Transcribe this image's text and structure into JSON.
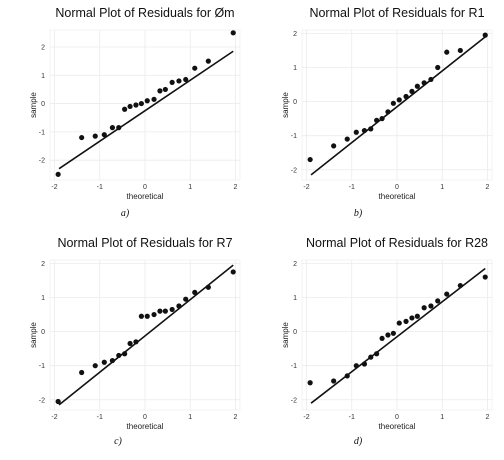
{
  "chart_data": [
    {
      "type": "scatter",
      "title": "Normal Plot of Residuals for Øm",
      "xlabel": "theoretical",
      "ylabel": "sample",
      "caption": "a)",
      "xlim": [
        -2.1,
        2.1
      ],
      "ylim": [
        -2.7,
        2.6
      ],
      "xticks": [
        -2,
        -1,
        0,
        1,
        2
      ],
      "yticks": [
        -2,
        -1,
        0,
        1,
        2
      ],
      "grid": true,
      "reference_line": {
        "x": [
          -1.9,
          1.95
        ],
        "y": [
          -2.3,
          1.85
        ]
      },
      "x": [
        -1.92,
        -1.4,
        -1.1,
        -0.9,
        -0.72,
        -0.58,
        -0.45,
        -0.33,
        -0.2,
        -0.08,
        0.05,
        0.2,
        0.33,
        0.45,
        0.6,
        0.75,
        0.9,
        1.1,
        1.4,
        1.95
      ],
      "y": [
        -2.5,
        -1.2,
        -1.15,
        -1.1,
        -0.85,
        -0.85,
        -0.2,
        -0.1,
        -0.05,
        0.0,
        0.1,
        0.15,
        0.45,
        0.5,
        0.75,
        0.8,
        0.85,
        1.25,
        1.5,
        2.5
      ]
    },
    {
      "type": "scatter",
      "title": "Normal Plot of Residuals for R1",
      "xlabel": "theoretical",
      "ylabel": "sample",
      "caption": "b)",
      "xlim": [
        -2.1,
        2.1
      ],
      "ylim": [
        -2.3,
        2.1
      ],
      "xticks": [
        -2,
        -1,
        0,
        1,
        2
      ],
      "yticks": [
        -2,
        -1,
        0,
        1,
        2
      ],
      "grid": true,
      "reference_line": {
        "x": [
          -1.9,
          1.95
        ],
        "y": [
          -2.15,
          1.9
        ]
      },
      "x": [
        -1.92,
        -1.4,
        -1.1,
        -0.9,
        -0.72,
        -0.58,
        -0.45,
        -0.33,
        -0.2,
        -0.08,
        0.05,
        0.2,
        0.33,
        0.45,
        0.6,
        0.75,
        0.9,
        1.1,
        1.4,
        1.95
      ],
      "y": [
        -1.7,
        -1.3,
        -1.1,
        -0.9,
        -0.85,
        -0.8,
        -0.55,
        -0.5,
        -0.3,
        -0.05,
        0.05,
        0.15,
        0.3,
        0.45,
        0.55,
        0.65,
        1.0,
        1.45,
        1.5,
        1.95
      ]
    },
    {
      "type": "scatter",
      "title": "Normal Plot of Residuals for R7",
      "xlabel": "theoretical",
      "ylabel": "sample",
      "caption": "c)",
      "xlim": [
        -2.1,
        2.1
      ],
      "ylim": [
        -2.3,
        2.1
      ],
      "xticks": [
        -2,
        -1,
        0,
        1,
        2
      ],
      "yticks": [
        -2,
        -1,
        0,
        1,
        2
      ],
      "grid": true,
      "reference_line": {
        "x": [
          -1.9,
          1.95
        ],
        "y": [
          -2.15,
          1.95
        ]
      },
      "x": [
        -1.92,
        -1.4,
        -1.1,
        -0.9,
        -0.72,
        -0.58,
        -0.45,
        -0.33,
        -0.2,
        -0.08,
        0.05,
        0.2,
        0.33,
        0.45,
        0.6,
        0.75,
        0.9,
        1.1,
        1.4,
        1.95
      ],
      "y": [
        -2.05,
        -1.2,
        -1.0,
        -0.9,
        -0.85,
        -0.7,
        -0.65,
        -0.35,
        -0.3,
        0.45,
        0.45,
        0.5,
        0.6,
        0.6,
        0.65,
        0.75,
        0.95,
        1.15,
        1.3,
        1.75
      ]
    },
    {
      "type": "scatter",
      "title": "Normal Plot of Residuals for R28",
      "xlabel": "theoretical",
      "ylabel": "sample",
      "caption": "d)",
      "xlim": [
        -2.1,
        2.1
      ],
      "ylim": [
        -2.3,
        2.1
      ],
      "xticks": [
        -2,
        -1,
        0,
        1,
        2
      ],
      "yticks": [
        -2,
        -1,
        0,
        1,
        2
      ],
      "grid": true,
      "reference_line": {
        "x": [
          -1.9,
          1.95
        ],
        "y": [
          -2.1,
          1.85
        ]
      },
      "x": [
        -1.92,
        -1.4,
        -1.1,
        -0.9,
        -0.72,
        -0.58,
        -0.45,
        -0.33,
        -0.2,
        -0.08,
        0.05,
        0.2,
        0.33,
        0.45,
        0.6,
        0.75,
        0.9,
        1.1,
        1.4,
        1.95
      ],
      "y": [
        -1.5,
        -1.45,
        -1.3,
        -1.0,
        -0.95,
        -0.75,
        -0.65,
        -0.2,
        -0.1,
        -0.05,
        0.25,
        0.3,
        0.4,
        0.45,
        0.7,
        0.75,
        0.9,
        1.1,
        1.35,
        1.6
      ]
    }
  ]
}
